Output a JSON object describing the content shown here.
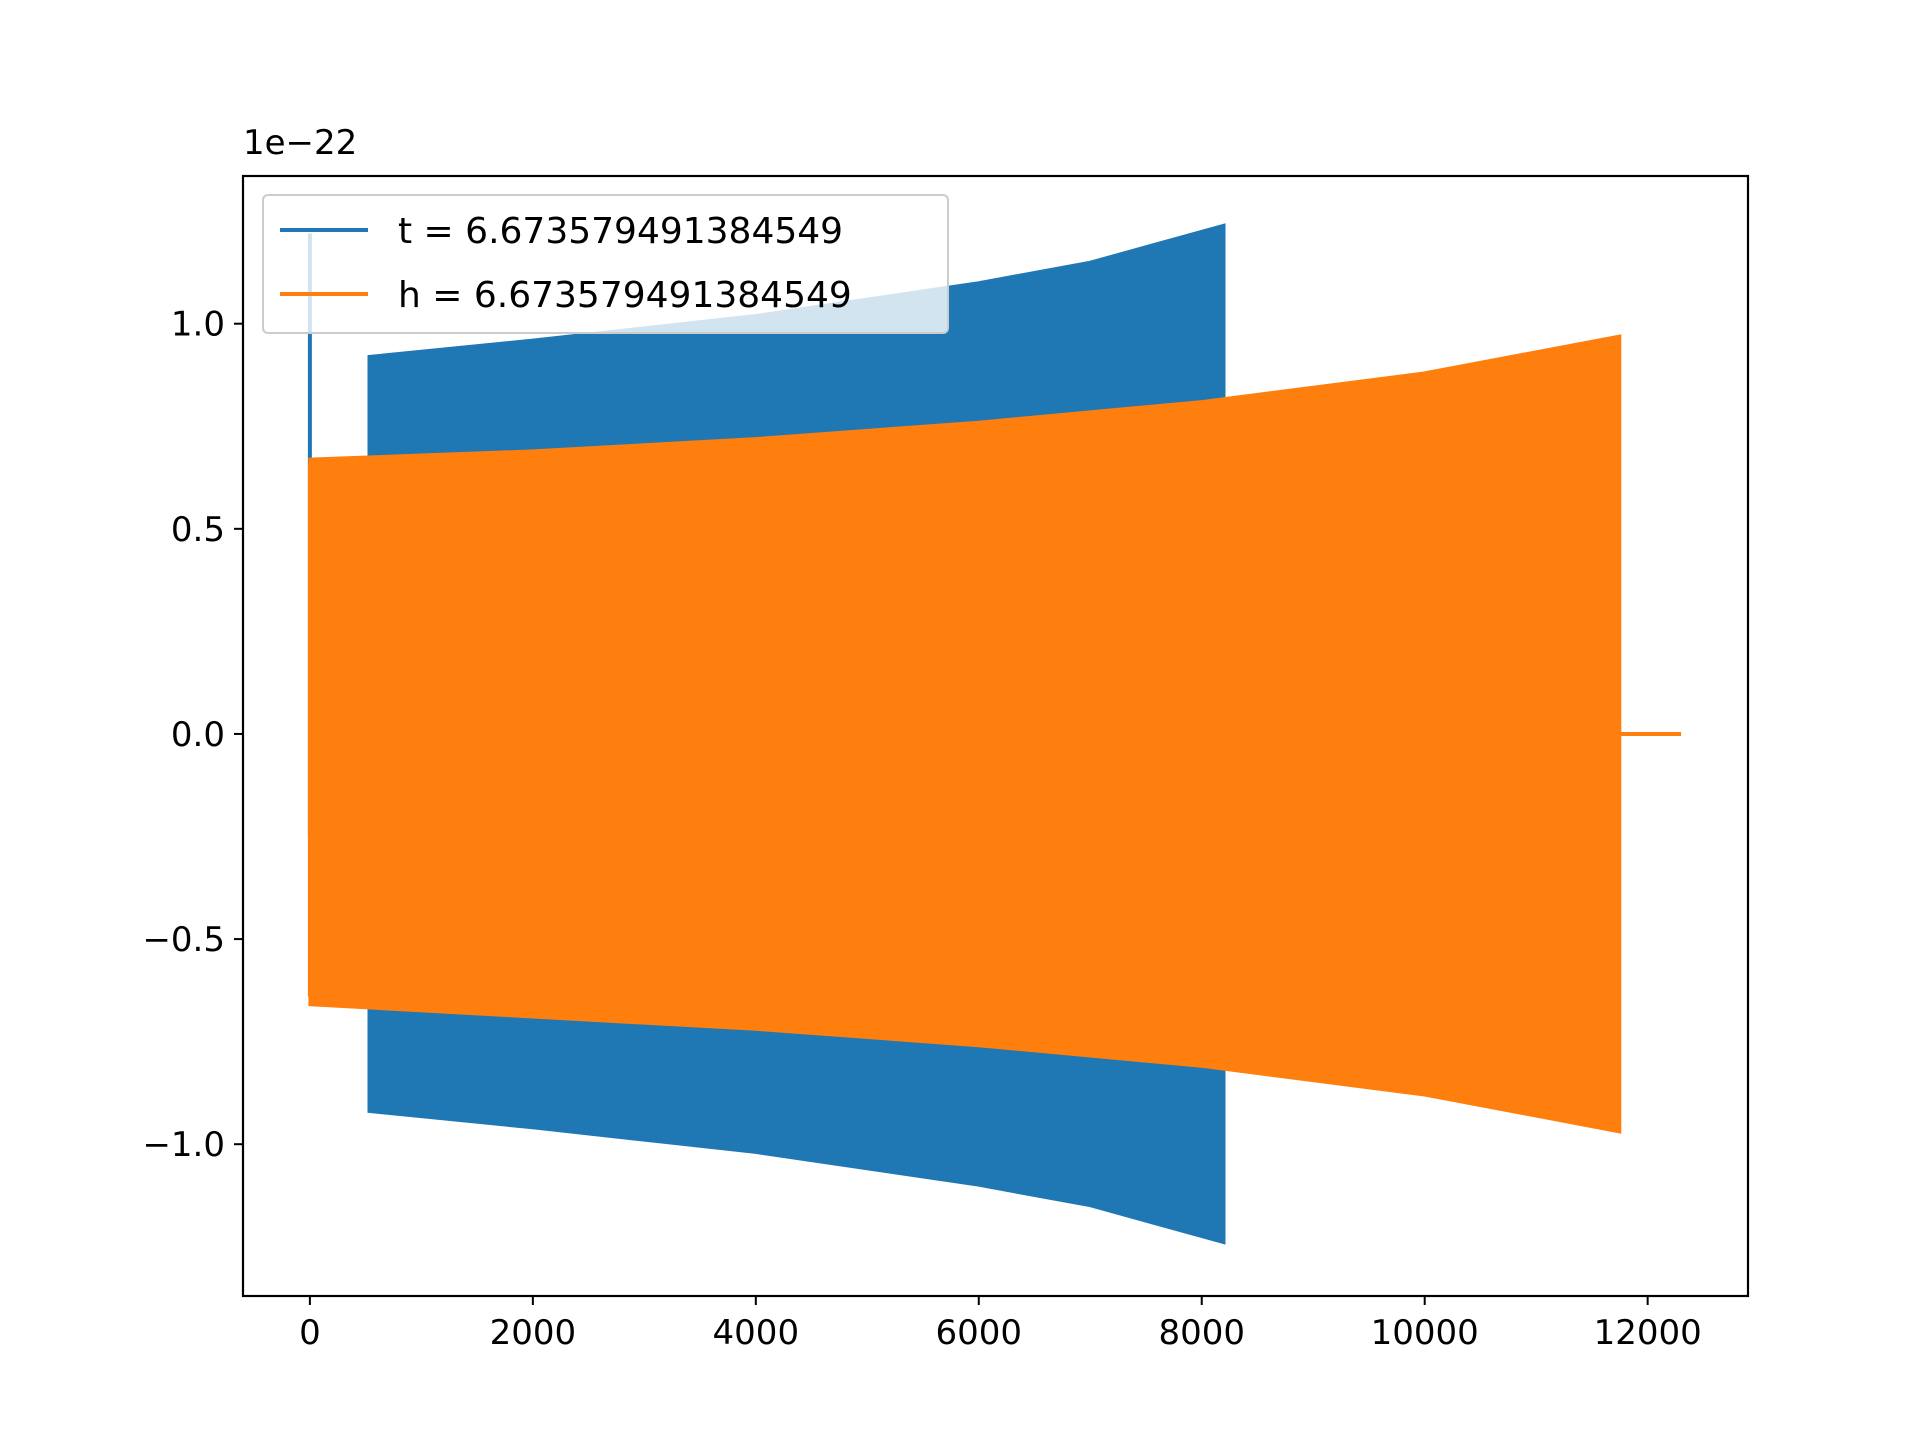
{
  "chart_data": {
    "type": "line",
    "title": "",
    "xlabel": "",
    "ylabel": "",
    "y_offset_label": "1e−22",
    "xlim": [
      -600,
      12900
    ],
    "ylim": [
      -1.37,
      1.36
    ],
    "x_ticks": [
      0,
      2000,
      4000,
      6000,
      8000,
      10000,
      12000
    ],
    "x_tick_labels": [
      "0",
      "2000",
      "4000",
      "6000",
      "8000",
      "10000",
      "12000"
    ],
    "y_ticks": [
      1.0,
      0.5,
      0.0,
      -0.5,
      -1.0
    ],
    "y_tick_labels": [
      "1.0",
      "0.5",
      "0.0",
      "−0.5",
      "−1.0"
    ],
    "grid": false,
    "legend_position": "upper left",
    "series": [
      {
        "name": "t = 6.673579491384549",
        "color": "#1f77b4",
        "initial_spike": {
          "x": 0,
          "y_max": 1.22,
          "y_min": -0.25
        },
        "envelope_points": [
          {
            "x": 530,
            "upper": 0.92,
            "lower": -0.92
          },
          {
            "x": 2000,
            "upper": 0.96,
            "lower": -0.96
          },
          {
            "x": 4000,
            "upper": 1.02,
            "lower": -1.02
          },
          {
            "x": 6000,
            "upper": 1.1,
            "lower": -1.1
          },
          {
            "x": 7000,
            "upper": 1.15,
            "lower": -1.15
          },
          {
            "x": 8200,
            "upper": 1.24,
            "lower": -1.24
          }
        ]
      },
      {
        "name": "h = 6.673579491384549",
        "color": "#ff7f0e",
        "initial_spike": {
          "x": 0,
          "y_max": 0.66,
          "y_min": -0.64
        },
        "envelope_points": [
          {
            "x": 0,
            "upper": 0.67,
            "lower": -0.66
          },
          {
            "x": 2000,
            "upper": 0.69,
            "lower": -0.69
          },
          {
            "x": 4000,
            "upper": 0.72,
            "lower": -0.72
          },
          {
            "x": 6000,
            "upper": 0.76,
            "lower": -0.76
          },
          {
            "x": 8000,
            "upper": 0.81,
            "lower": -0.81
          },
          {
            "x": 10000,
            "upper": 0.88,
            "lower": -0.88
          },
          {
            "x": 11750,
            "upper": 0.97,
            "lower": -0.97
          }
        ],
        "tail": {
          "x_start": 11750,
          "x_end": 12300,
          "y": 0.0
        }
      }
    ]
  }
}
